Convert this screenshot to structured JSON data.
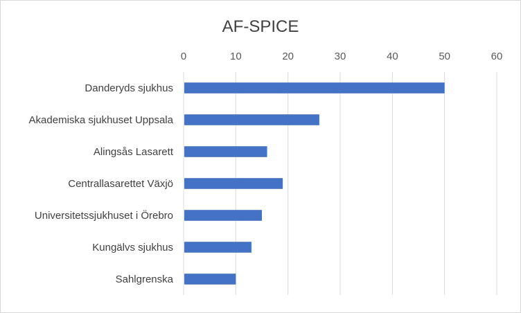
{
  "chart_data": {
    "type": "bar",
    "orientation": "horizontal",
    "title": "AF-SPICE",
    "xlabel": "",
    "ylabel": "",
    "categories": [
      "Danderyds sjukhus",
      "Akademiska sjukhuset Uppsala",
      "Alingsås Lasarett",
      "Centrallasarettet Växjö",
      "Universitetssjukhuset i Örebro",
      "Kungälvs sjukhus",
      "Sahlgrenska"
    ],
    "values": [
      50,
      26,
      16,
      19,
      15,
      13,
      10
    ],
    "xlim": [
      0,
      60
    ],
    "xticks": [
      "0",
      "10",
      "20",
      "30",
      "40",
      "50",
      "60"
    ],
    "grid": true,
    "legend": "none",
    "bar_color": "#4472C4",
    "axis_position": "top"
  }
}
